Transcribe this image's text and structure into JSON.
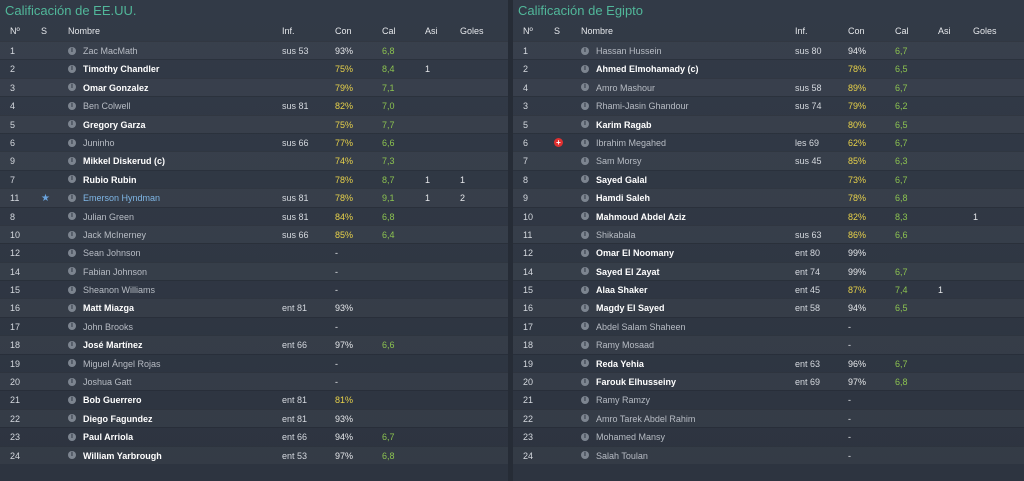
{
  "colors": {
    "accent": "#51b79a",
    "good": "#8cc350",
    "mid": "#e8d24a",
    "star": "#6aa3dd",
    "injury": "#e03030"
  },
  "headers": {
    "num": "Nº",
    "s": "S",
    "name": "Nombre",
    "inf": "Inf.",
    "con": "Con",
    "cal": "Cal",
    "asi": "Asi",
    "gol": "Goles"
  },
  "left": {
    "title": "Calificación de EE.UU.",
    "rows": [
      {
        "num": "1",
        "s": "",
        "name": "Zac MacMath",
        "style": "norm",
        "inf": "sus 53",
        "con": "93%",
        "con_c": "white",
        "cal": "6,8",
        "asi": "",
        "gol": ""
      },
      {
        "num": "2",
        "s": "",
        "name": "Timothy Chandler",
        "style": "bold",
        "inf": "",
        "con": "75%",
        "con_c": "yellow",
        "cal": "8,4",
        "asi": "1",
        "gol": ""
      },
      {
        "num": "3",
        "s": "",
        "name": "Omar Gonzalez",
        "style": "bold",
        "inf": "",
        "con": "79%",
        "con_c": "yellow",
        "cal": "7,1",
        "asi": "",
        "gol": ""
      },
      {
        "num": "4",
        "s": "",
        "name": "Ben Colwell",
        "style": "norm",
        "inf": "sus 81",
        "con": "82%",
        "con_c": "yellow",
        "cal": "7,0",
        "asi": "",
        "gol": ""
      },
      {
        "num": "5",
        "s": "",
        "name": "Gregory Garza",
        "style": "bold",
        "inf": "",
        "con": "75%",
        "con_c": "yellow",
        "cal": "7,7",
        "asi": "",
        "gol": ""
      },
      {
        "num": "6",
        "s": "",
        "name": "Juninho",
        "style": "norm",
        "inf": "sus 66",
        "con": "77%",
        "con_c": "yellow",
        "cal": "6,6",
        "asi": "",
        "gol": ""
      },
      {
        "num": "9",
        "s": "",
        "name": "Mikkel Diskerud (c)",
        "style": "bold",
        "inf": "",
        "con": "74%",
        "con_c": "yellow",
        "cal": "7,3",
        "asi": "",
        "gol": ""
      },
      {
        "num": "7",
        "s": "",
        "name": "Rubio Rubin",
        "style": "bold",
        "inf": "",
        "con": "78%",
        "con_c": "yellow",
        "cal": "8,7",
        "asi": "1",
        "gol": "1"
      },
      {
        "num": "11",
        "s": "★",
        "name": "Emerson Hyndman",
        "style": "hl",
        "inf": "sus 81",
        "con": "78%",
        "con_c": "yellow",
        "cal": "9,1",
        "asi": "1",
        "gol": "2"
      },
      {
        "num": "8",
        "s": "",
        "name": "Julian Green",
        "style": "norm",
        "inf": "sus 81",
        "con": "84%",
        "con_c": "yellow",
        "cal": "6,8",
        "asi": "",
        "gol": ""
      },
      {
        "num": "10",
        "s": "",
        "name": "Jack McInerney",
        "style": "norm",
        "inf": "sus 66",
        "con": "85%",
        "con_c": "yellow",
        "cal": "6,4",
        "asi": "",
        "gol": ""
      },
      {
        "num": "12",
        "s": "",
        "name": "Sean Johnson",
        "style": "norm",
        "inf": "",
        "con": "-",
        "con_c": "white",
        "cal": "",
        "asi": "",
        "gol": ""
      },
      {
        "num": "14",
        "s": "",
        "name": "Fabian Johnson",
        "style": "norm",
        "inf": "",
        "con": "-",
        "con_c": "white",
        "cal": "",
        "asi": "",
        "gol": ""
      },
      {
        "num": "15",
        "s": "",
        "name": "Sheanon Williams",
        "style": "norm",
        "inf": "",
        "con": "-",
        "con_c": "white",
        "cal": "",
        "asi": "",
        "gol": ""
      },
      {
        "num": "16",
        "s": "",
        "name": "Matt Miazga",
        "style": "bold",
        "inf": "ent 81",
        "con": "93%",
        "con_c": "white",
        "cal": "",
        "asi": "",
        "gol": ""
      },
      {
        "num": "17",
        "s": "",
        "name": "John Brooks",
        "style": "norm",
        "inf": "",
        "con": "-",
        "con_c": "white",
        "cal": "",
        "asi": "",
        "gol": ""
      },
      {
        "num": "18",
        "s": "",
        "name": "José Martínez",
        "style": "bold",
        "inf": "ent 66",
        "con": "97%",
        "con_c": "white",
        "cal": "6,6",
        "asi": "",
        "gol": ""
      },
      {
        "num": "19",
        "s": "",
        "name": "Miguel Ángel Rojas",
        "style": "norm",
        "inf": "",
        "con": "-",
        "con_c": "white",
        "cal": "",
        "asi": "",
        "gol": ""
      },
      {
        "num": "20",
        "s": "",
        "name": "Joshua Gatt",
        "style": "norm",
        "inf": "",
        "con": "-",
        "con_c": "white",
        "cal": "",
        "asi": "",
        "gol": ""
      },
      {
        "num": "21",
        "s": "",
        "name": "Bob Guerrero",
        "style": "bold",
        "inf": "ent 81",
        "con": "81%",
        "con_c": "yellow",
        "cal": "",
        "asi": "",
        "gol": ""
      },
      {
        "num": "22",
        "s": "",
        "name": "Diego Fagundez",
        "style": "bold",
        "inf": "ent 81",
        "con": "93%",
        "con_c": "white",
        "cal": "",
        "asi": "",
        "gol": ""
      },
      {
        "num": "23",
        "s": "",
        "name": "Paul Arriola",
        "style": "bold",
        "inf": "ent 66",
        "con": "94%",
        "con_c": "white",
        "cal": "6,7",
        "asi": "",
        "gol": ""
      },
      {
        "num": "24",
        "s": "",
        "name": "William Yarbrough",
        "style": "bold",
        "inf": "ent 53",
        "con": "97%",
        "con_c": "white",
        "cal": "6,8",
        "asi": "",
        "gol": ""
      }
    ]
  },
  "right": {
    "title": "Calificación de Egipto",
    "rows": [
      {
        "num": "1",
        "s": "",
        "name": "Hassan Hussein",
        "style": "norm",
        "inf": "sus 80",
        "con": "94%",
        "con_c": "white",
        "cal": "6,7",
        "asi": "",
        "gol": ""
      },
      {
        "num": "2",
        "s": "",
        "name": "Ahmed Elmohamady (c)",
        "style": "bold",
        "inf": "",
        "con": "78%",
        "con_c": "yellow",
        "cal": "6,5",
        "asi": "",
        "gol": ""
      },
      {
        "num": "4",
        "s": "",
        "name": "Amro Mashour",
        "style": "norm",
        "inf": "sus 58",
        "con": "89%",
        "con_c": "yellow",
        "cal": "6,7",
        "asi": "",
        "gol": ""
      },
      {
        "num": "3",
        "s": "",
        "name": "Rhami-Jasin Ghandour",
        "style": "norm",
        "inf": "sus 74",
        "con": "79%",
        "con_c": "yellow",
        "cal": "6,2",
        "asi": "",
        "gol": ""
      },
      {
        "num": "5",
        "s": "",
        "name": "Karim Ragab",
        "style": "bold",
        "inf": "",
        "con": "80%",
        "con_c": "yellow",
        "cal": "6,5",
        "asi": "",
        "gol": ""
      },
      {
        "num": "6",
        "s": "+",
        "name": "Ibrahim Megahed",
        "style": "norm",
        "inf": "les 69",
        "con": "62%",
        "con_c": "yellow",
        "cal": "6,7",
        "asi": "",
        "gol": ""
      },
      {
        "num": "7",
        "s": "",
        "name": "Sam Morsy",
        "style": "norm",
        "inf": "sus 45",
        "con": "85%",
        "con_c": "yellow",
        "cal": "6,3",
        "asi": "",
        "gol": ""
      },
      {
        "num": "8",
        "s": "",
        "name": "Sayed Galal",
        "style": "bold",
        "inf": "",
        "con": "73%",
        "con_c": "yellow",
        "cal": "6,7",
        "asi": "",
        "gol": ""
      },
      {
        "num": "9",
        "s": "",
        "name": "Hamdi Saleh",
        "style": "bold",
        "inf": "",
        "con": "78%",
        "con_c": "yellow",
        "cal": "6,8",
        "asi": "",
        "gol": ""
      },
      {
        "num": "10",
        "s": "",
        "name": "Mahmoud Abdel Aziz",
        "style": "bold",
        "inf": "",
        "con": "82%",
        "con_c": "yellow",
        "cal": "8,3",
        "asi": "",
        "gol": "1"
      },
      {
        "num": "11",
        "s": "",
        "name": "Shikabala",
        "style": "norm",
        "inf": "sus 63",
        "con": "86%",
        "con_c": "yellow",
        "cal": "6,6",
        "asi": "",
        "gol": ""
      },
      {
        "num": "12",
        "s": "",
        "name": "Omar El Noomany",
        "style": "bold",
        "inf": "ent 80",
        "con": "99%",
        "con_c": "white",
        "cal": "",
        "asi": "",
        "gol": ""
      },
      {
        "num": "14",
        "s": "",
        "name": "Sayed El Zayat",
        "style": "bold",
        "inf": "ent 74",
        "con": "99%",
        "con_c": "white",
        "cal": "6,7",
        "asi": "",
        "gol": ""
      },
      {
        "num": "15",
        "s": "",
        "name": "Alaa Shaker",
        "style": "bold",
        "inf": "ent 45",
        "con": "87%",
        "con_c": "yellow",
        "cal": "7,4",
        "asi": "1",
        "gol": ""
      },
      {
        "num": "16",
        "s": "",
        "name": "Magdy El Sayed",
        "style": "bold",
        "inf": "ent 58",
        "con": "94%",
        "con_c": "white",
        "cal": "6,5",
        "asi": "",
        "gol": ""
      },
      {
        "num": "17",
        "s": "",
        "name": "Abdel Salam Shaheen",
        "style": "norm",
        "inf": "",
        "con": "-",
        "con_c": "white",
        "cal": "",
        "asi": "",
        "gol": ""
      },
      {
        "num": "18",
        "s": "",
        "name": "Ramy Mosaad",
        "style": "norm",
        "inf": "",
        "con": "-",
        "con_c": "white",
        "cal": "",
        "asi": "",
        "gol": ""
      },
      {
        "num": "19",
        "s": "",
        "name": "Reda Yehia",
        "style": "bold",
        "inf": "ent 63",
        "con": "96%",
        "con_c": "white",
        "cal": "6,7",
        "asi": "",
        "gol": ""
      },
      {
        "num": "20",
        "s": "",
        "name": "Farouk Elhusseiny",
        "style": "bold",
        "inf": "ent 69",
        "con": "97%",
        "con_c": "white",
        "cal": "6,8",
        "asi": "",
        "gol": ""
      },
      {
        "num": "21",
        "s": "",
        "name": "Ramy Ramzy",
        "style": "norm",
        "inf": "",
        "con": "-",
        "con_c": "white",
        "cal": "",
        "asi": "",
        "gol": ""
      },
      {
        "num": "22",
        "s": "",
        "name": "Amro Tarek Abdel Rahim",
        "style": "norm",
        "inf": "",
        "con": "-",
        "con_c": "white",
        "cal": "",
        "asi": "",
        "gol": ""
      },
      {
        "num": "23",
        "s": "",
        "name": "Mohamed Mansy",
        "style": "norm",
        "inf": "",
        "con": "-",
        "con_c": "white",
        "cal": "",
        "asi": "",
        "gol": ""
      },
      {
        "num": "24",
        "s": "",
        "name": "Salah Toulan",
        "style": "norm",
        "inf": "",
        "con": "-",
        "con_c": "white",
        "cal": "",
        "asi": "",
        "gol": ""
      }
    ]
  }
}
